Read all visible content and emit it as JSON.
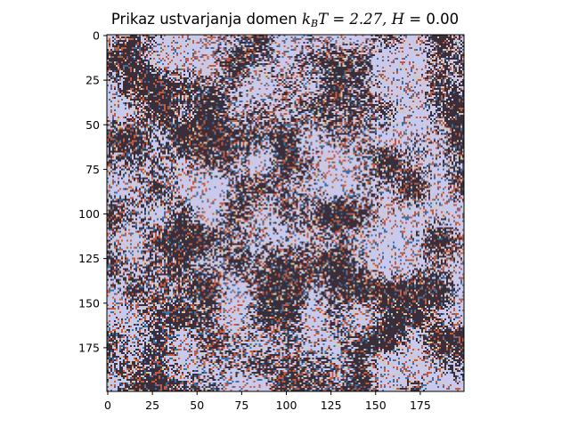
{
  "chart_data": {
    "type": "heatmap",
    "title_prefix": "Prikaz ustvarjanja domen ",
    "title_math_k": "k",
    "title_math_sub": "B",
    "title_math_rest": "T = 2.27, ",
    "title_math_h": "H",
    "title_math_hval": " = 0.00",
    "lattice_size": [
      200,
      200
    ],
    "xlim": [
      0,
      199
    ],
    "ylim": [
      199,
      0
    ],
    "x_ticks": [
      0,
      25,
      50,
      75,
      100,
      125,
      150,
      175
    ],
    "y_ticks": [
      0,
      25,
      50,
      75,
      100,
      125,
      150,
      175
    ],
    "x_tick_labels": [
      "0",
      "25",
      "50",
      "75",
      "100",
      "125",
      "150",
      "175"
    ],
    "y_tick_labels": [
      "0",
      "25",
      "50",
      "75",
      "100",
      "125",
      "150",
      "175"
    ],
    "spin_up_color": "#c9c9ee",
    "spin_down_color": "#3a2e3a",
    "grid": false
  }
}
